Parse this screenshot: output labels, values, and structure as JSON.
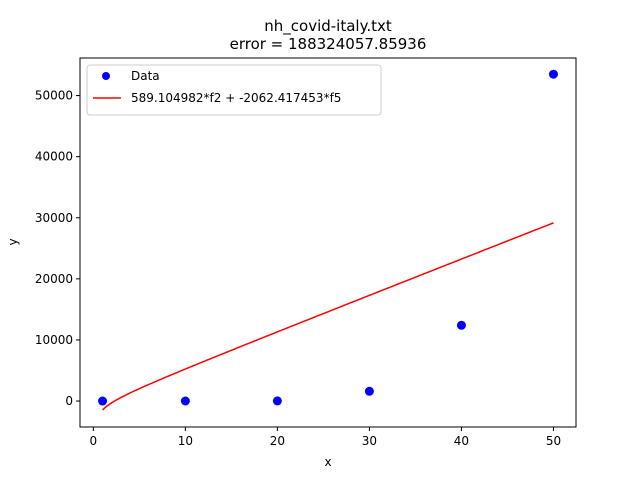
{
  "chart_data": {
    "type": "scatter",
    "title_lines": [
      "nh_covid-italy.txt",
      "error  = 188324057.85936"
    ],
    "xlabel": "x",
    "ylabel": "y",
    "xlim": [
      -1.45,
      52.45
    ],
    "ylim": [
      -4250,
      56150
    ],
    "xticks": [
      0,
      10,
      20,
      30,
      40,
      50
    ],
    "yticks": [
      0,
      10000,
      20000,
      30000,
      40000,
      50000
    ],
    "grid": false,
    "legend_position": "top-left",
    "series": [
      {
        "name": "Data",
        "kind": "points",
        "color": "#0000ff",
        "x": [
          1,
          10,
          20,
          30,
          40,
          50
        ],
        "y": [
          0,
          5,
          20,
          1600,
          12400,
          53500
        ]
      },
      {
        "name": "589.104982*f2 + -2062.417453*f5",
        "kind": "line",
        "color": "#ff0000",
        "coefficients": {
          "f2": 589.104982,
          "f5": -2062.417453
        },
        "x_range": [
          1,
          50
        ]
      }
    ]
  }
}
